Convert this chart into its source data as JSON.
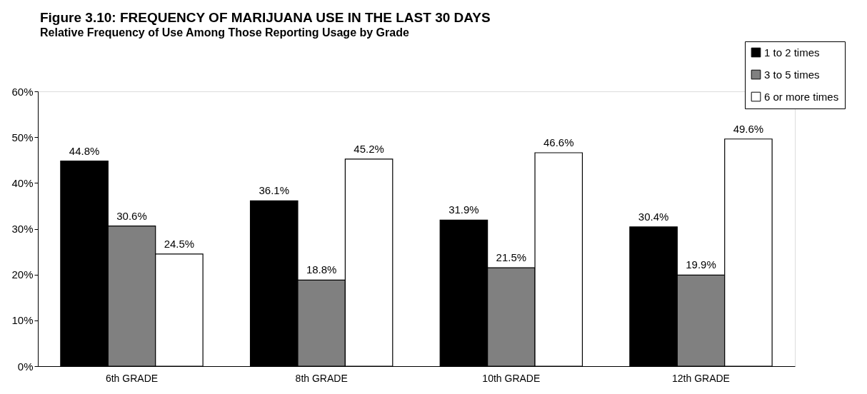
{
  "chart_data": {
    "type": "bar",
    "title": "Figure 3.10:  FREQUENCY OF MARIJUANA USE IN THE LAST 30 DAYS",
    "subtitle": "Relative Frequency of Use Among Those Reporting Usage by Grade",
    "categories": [
      "6th GRADE",
      "8th GRADE",
      "10th GRADE",
      "12th GRADE"
    ],
    "series": [
      {
        "name": "1 to 2 times",
        "color": "#000000",
        "values": [
          44.8,
          36.1,
          31.9,
          30.4
        ],
        "value_labels": [
          "44.8%",
          "36.1%",
          "31.9%",
          "30.4%"
        ]
      },
      {
        "name": "3 to 5 times",
        "color": "#808080",
        "values": [
          30.6,
          18.8,
          21.5,
          19.9
        ],
        "value_labels": [
          "30.6%",
          "18.8%",
          "21.5%",
          "19.9%"
        ]
      },
      {
        "name": "6 or more times",
        "color": "#ffffff",
        "values": [
          24.5,
          45.2,
          46.6,
          49.6
        ],
        "value_labels": [
          "24.5%",
          "45.2%",
          "46.6%",
          "49.6%"
        ]
      }
    ],
    "ylim": [
      0,
      60
    ],
    "yticks": [
      {
        "value": 0,
        "label": "0%"
      },
      {
        "value": 10,
        "label": "10%"
      },
      {
        "value": 20,
        "label": "20%"
      },
      {
        "value": 30,
        "label": "30%"
      },
      {
        "value": 40,
        "label": "40%"
      },
      {
        "value": 50,
        "label": "50%"
      },
      {
        "value": 60,
        "label": "60%"
      }
    ],
    "grid": false,
    "legend": "top right"
  }
}
